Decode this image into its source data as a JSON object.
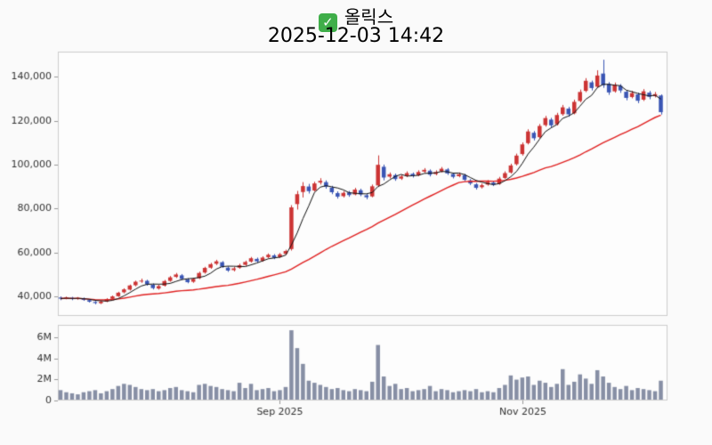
{
  "header": {
    "title": "올릭스",
    "subtitle": "2025-12-03 14:42",
    "checkbox_glyph": "✓"
  },
  "chart_data": {
    "type": "candlestick",
    "title": "올릭스",
    "subtitle": "2025-12-03 14:42",
    "legend_position": "none",
    "grid": false,
    "y_ticks_price": [
      40000,
      60000,
      80000,
      100000,
      120000,
      140000
    ],
    "price_axis_range": [
      31000,
      151500
    ],
    "y_ticks_volume": [
      {
        "v": 0,
        "label": "0"
      },
      {
        "v": 2000000,
        "label": "2M"
      },
      {
        "v": 4000000,
        "label": "4M"
      },
      {
        "v": 6000000,
        "label": "6M"
      }
    ],
    "volume_axis_range": [
      0,
      7200000
    ],
    "x_ticks": [
      {
        "index": 38,
        "label": "Sep 2025"
      },
      {
        "index": 80,
        "label": "Nov 2025"
      }
    ],
    "overlays": [
      {
        "name": "ma-fast",
        "type": "sma",
        "window": 5,
        "color": "#111111",
        "width": 1
      },
      {
        "name": "ma-slow",
        "type": "sma",
        "window": 30,
        "color": "#e02222",
        "width": 1.4
      }
    ],
    "colors": {
      "up": "#cc3434",
      "down": "#3a55b4",
      "volume": "#878fa5",
      "axis_text": "#333333",
      "spine": "#cccccc",
      "tick": "#999999",
      "panel_bg": "#fdfdfd",
      "figure_bg": "#fafafa"
    },
    "candles": [
      [
        39400,
        39900,
        38200,
        38900,
        900000
      ],
      [
        39000,
        39800,
        38600,
        39300,
        700000
      ],
      [
        39300,
        39700,
        38200,
        38700,
        600000
      ],
      [
        38800,
        39600,
        38400,
        39200,
        500000
      ],
      [
        39100,
        39400,
        37900,
        38300,
        700000
      ],
      [
        38200,
        38600,
        37100,
        37500,
        800000
      ],
      [
        37400,
        37800,
        36300,
        36900,
        900000
      ],
      [
        36800,
        37900,
        36400,
        37500,
        600000
      ],
      [
        37600,
        39100,
        37300,
        38700,
        800000
      ],
      [
        38800,
        40300,
        38500,
        39900,
        1000000
      ],
      [
        40000,
        42000,
        39700,
        41600,
        1300000
      ],
      [
        41800,
        43600,
        41300,
        43100,
        1500000
      ],
      [
        43000,
        45300,
        42600,
        44900,
        1400000
      ],
      [
        45000,
        47100,
        44500,
        46600,
        1200000
      ],
      [
        46800,
        48000,
        46100,
        47100,
        1000000
      ],
      [
        47000,
        47500,
        44800,
        45400,
        900000
      ],
      [
        45200,
        45800,
        43100,
        43700,
        1000000
      ],
      [
        43500,
        45200,
        43000,
        44600,
        800000
      ],
      [
        44800,
        47400,
        44400,
        46900,
        900000
      ],
      [
        47000,
        49200,
        46600,
        48600,
        1100000
      ],
      [
        48800,
        50600,
        48300,
        49900,
        1200000
      ],
      [
        49500,
        50100,
        47400,
        47900,
        900000
      ],
      [
        47600,
        48200,
        45900,
        46400,
        800000
      ],
      [
        46600,
        48400,
        46100,
        47900,
        700000
      ],
      [
        48200,
        51200,
        47800,
        50600,
        1400000
      ],
      [
        50800,
        53400,
        50300,
        52900,
        1500000
      ],
      [
        53000,
        55200,
        52500,
        54600,
        1300000
      ],
      [
        54800,
        56600,
        54200,
        55900,
        1200000
      ],
      [
        55500,
        56000,
        52900,
        53400,
        1000000
      ],
      [
        53000,
        53600,
        51100,
        51700,
        900000
      ],
      [
        51900,
        53300,
        51300,
        52700,
        800000
      ],
      [
        53000,
        54800,
        52500,
        54100,
        1600000
      ],
      [
        54300,
        56200,
        53800,
        55600,
        1100000
      ],
      [
        55800,
        57900,
        55300,
        57300,
        1500000
      ],
      [
        57000,
        57600,
        55300,
        55900,
        900000
      ],
      [
        56200,
        58200,
        55700,
        57600,
        1000000
      ],
      [
        57800,
        59500,
        57300,
        58900,
        1100000
      ],
      [
        58600,
        59200,
        56900,
        57500,
        800000
      ],
      [
        57800,
        59700,
        57400,
        59100,
        900000
      ],
      [
        59300,
        61200,
        58800,
        60600,
        1200000
      ],
      [
        61500,
        81500,
        60800,
        80500,
        6600000
      ],
      [
        82000,
        88000,
        79500,
        86500,
        4900000
      ],
      [
        87500,
        92000,
        85000,
        90200,
        3400000
      ],
      [
        90000,
        91200,
        86800,
        87900,
        1800000
      ],
      [
        88200,
        92200,
        87700,
        91400,
        1600000
      ],
      [
        91800,
        93800,
        90900,
        92600,
        1400000
      ],
      [
        92000,
        92800,
        89000,
        89900,
        1200000
      ],
      [
        89500,
        90300,
        86500,
        87400,
        1000000
      ],
      [
        87000,
        87800,
        84500,
        85400,
        1100000
      ],
      [
        85600,
        87900,
        85000,
        87100,
        900000
      ],
      [
        87300,
        88000,
        85300,
        86100,
        800000
      ],
      [
        86400,
        89400,
        86000,
        88600,
        1000000
      ],
      [
        88300,
        89000,
        85600,
        86400,
        900000
      ],
      [
        86000,
        86800,
        84200,
        85100,
        800000
      ],
      [
        85500,
        90900,
        85100,
        90100,
        1700000
      ],
      [
        90500,
        104200,
        89800,
        99900,
        5200000
      ],
      [
        99000,
        100000,
        92800,
        94100,
        2200000
      ],
      [
        94500,
        96400,
        93700,
        95600,
        1300000
      ],
      [
        95200,
        95900,
        92600,
        93400,
        1500000
      ],
      [
        93600,
        95400,
        93000,
        94600,
        1000000
      ],
      [
        94900,
        96900,
        94300,
        96100,
        1100000
      ],
      [
        95800,
        96400,
        94100,
        94900,
        800000
      ],
      [
        95200,
        97400,
        94700,
        96600,
        900000
      ],
      [
        96800,
        98400,
        96200,
        97600,
        1000000
      ],
      [
        97200,
        97800,
        94600,
        95400,
        1300000
      ],
      [
        95700,
        97400,
        95100,
        96600,
        800000
      ],
      [
        96900,
        98900,
        96400,
        98100,
        1000000
      ],
      [
        97800,
        98400,
        95300,
        96000,
        900000
      ],
      [
        95700,
        96300,
        93700,
        94400,
        700000
      ],
      [
        94700,
        96400,
        94200,
        95600,
        800000
      ],
      [
        95200,
        95800,
        92400,
        93100,
        900000
      ],
      [
        92800,
        93400,
        90700,
        91400,
        800000
      ],
      [
        91000,
        91600,
        88600,
        89400,
        1000000
      ],
      [
        89700,
        91400,
        89100,
        90600,
        700000
      ],
      [
        90900,
        92900,
        90400,
        92100,
        800000
      ],
      [
        91800,
        92400,
        90200,
        90900,
        700000
      ],
      [
        91200,
        94400,
        90800,
        93600,
        1100000
      ],
      [
        93900,
        96900,
        93400,
        96100,
        1400000
      ],
      [
        96400,
        100400,
        95900,
        99600,
        2300000
      ],
      [
        100200,
        105000,
        99600,
        104100,
        1900000
      ],
      [
        104800,
        110100,
        104100,
        109200,
        2100000
      ],
      [
        109800,
        116100,
        109200,
        115100,
        2200000
      ],
      [
        114500,
        115300,
        111000,
        112000,
        1400000
      ],
      [
        112500,
        118500,
        111900,
        117600,
        1800000
      ],
      [
        118000,
        122200,
        117300,
        121200,
        1600000
      ],
      [
        120500,
        121300,
        116800,
        117900,
        1200000
      ],
      [
        118400,
        123600,
        117800,
        122600,
        1500000
      ],
      [
        123000,
        127200,
        122300,
        126100,
        2900000
      ],
      [
        125500,
        126300,
        121800,
        122900,
        1400000
      ],
      [
        123400,
        129600,
        122900,
        128600,
        1700000
      ],
      [
        129000,
        134200,
        128400,
        133100,
        2400000
      ],
      [
        133600,
        139400,
        133000,
        138200,
        2000000
      ],
      [
        137500,
        138300,
        133800,
        134900,
        1500000
      ],
      [
        135500,
        143000,
        134900,
        140600,
        2800000
      ],
      [
        141500,
        147800,
        135000,
        136200,
        2200000
      ],
      [
        136800,
        137600,
        131800,
        132900,
        1600000
      ],
      [
        133400,
        137400,
        132800,
        136400,
        1200000
      ],
      [
        135900,
        136700,
        132700,
        133800,
        1000000
      ],
      [
        133200,
        134000,
        129300,
        130400,
        1300000
      ],
      [
        130800,
        133600,
        130200,
        132600,
        900000
      ],
      [
        132000,
        132800,
        128000,
        129100,
        1100000
      ],
      [
        129600,
        134400,
        129000,
        133400,
        1000000
      ],
      [
        132800,
        133600,
        129800,
        130900,
        900000
      ],
      [
        131200,
        133100,
        130600,
        132100,
        800000
      ],
      [
        131500,
        132000,
        122800,
        123900,
        1800000
      ]
    ]
  }
}
